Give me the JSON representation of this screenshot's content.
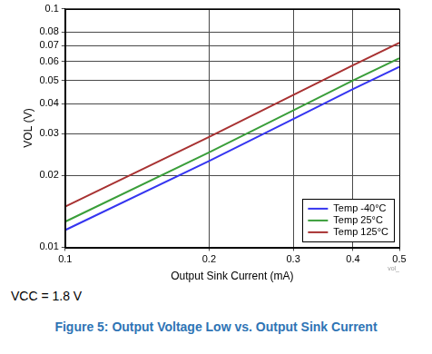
{
  "chart_data": {
    "type": "line",
    "title": "Figure 5: Output Voltage Low vs. Output Sink Current",
    "x_label": "Output Sink Current (mA)",
    "y_label": "VOL (V)",
    "annotations": [
      "VCC = 1.8 V",
      "vol_"
    ],
    "x": [
      0.1,
      0.2,
      0.3,
      0.4,
      0.5
    ],
    "series": [
      {
        "name": "Temp -40°C",
        "color": "#3535f0",
        "values": [
          0.0118,
          0.023,
          0.0345,
          0.046,
          0.057
        ]
      },
      {
        "name": "Temp 25°C",
        "color": "#3a9e3a",
        "values": [
          0.0128,
          0.025,
          0.0375,
          0.05,
          0.062
        ]
      },
      {
        "name": "Temp 125°C",
        "color": "#a83232",
        "values": [
          0.0148,
          0.029,
          0.0435,
          0.058,
          0.072
        ]
      }
    ],
    "xlim": [
      0.1,
      0.5
    ],
    "xticks": [
      0.1,
      0.2,
      0.3,
      0.4,
      0.5
    ],
    "ylim": [
      0.01,
      0.1
    ],
    "yticks": [
      0.01,
      0.02,
      0.03,
      0.04,
      0.05,
      0.06,
      0.07,
      0.08,
      0.1
    ],
    "log": true,
    "grid": true,
    "legend": "lower right"
  }
}
